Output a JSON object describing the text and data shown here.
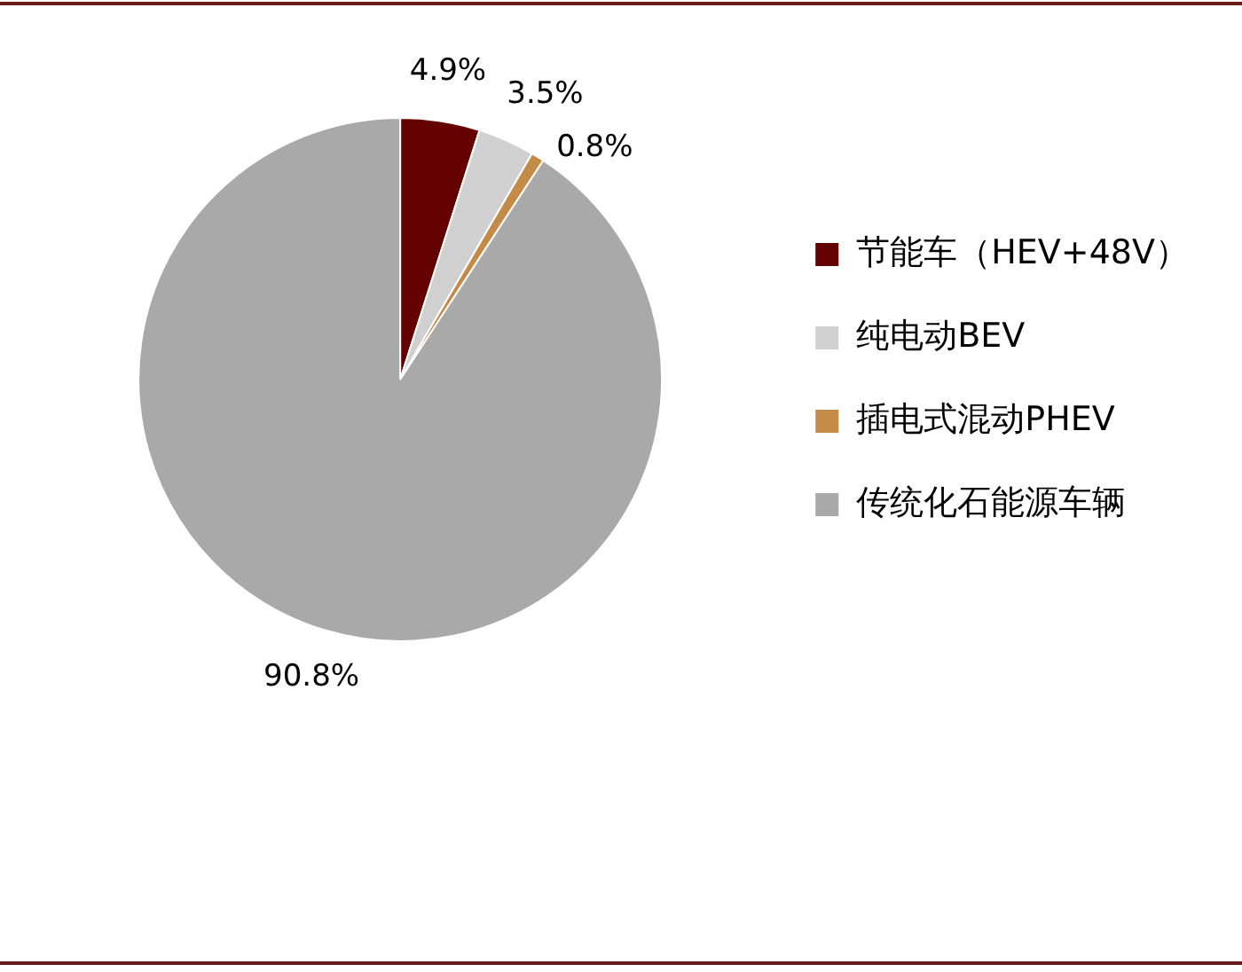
{
  "chart_data": {
    "type": "pie",
    "categories": [
      "节能车（HEV+48V）",
      "纯电动BEV",
      "插电式混动PHEV",
      "传统化石能源车辆"
    ],
    "values": [
      4.9,
      3.5,
      0.8,
      90.8
    ],
    "colors": [
      "#640000",
      "#d0d0d0",
      "#c48a48",
      "#a9a9a9"
    ],
    "value_labels": [
      "4.9%",
      "3.5%",
      "0.8%",
      "90.8%"
    ],
    "legend": "right"
  }
}
